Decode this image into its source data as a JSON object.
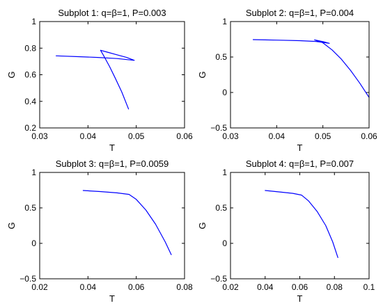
{
  "colors": {
    "line": "#0000ff",
    "axes": "#000000",
    "background": "#ffffff"
  },
  "chart_data": [
    {
      "type": "line",
      "title": "Subplot 1: q=β=1, P=0.003",
      "xlabel": "T",
      "ylabel": "G",
      "xlim": [
        0.03,
        0.06
      ],
      "ylim": [
        0.2,
        1.0
      ],
      "xticks": [
        "0.03",
        "0.04",
        "0.05",
        "0.06"
      ],
      "yticks": [
        "0.2",
        "0.4",
        "0.6",
        "0.8",
        "1"
      ],
      "grid": false,
      "series": [
        {
          "x": [
            0.0334,
            0.038,
            0.042,
            0.046,
            0.0496,
            0.048,
            0.046,
            0.044,
            0.0426,
            0.0433,
            0.0445,
            0.0457,
            0.047,
            0.0484
          ],
          "y": [
            0.742,
            0.736,
            0.73,
            0.722,
            0.708,
            0.73,
            0.75,
            0.77,
            0.784,
            0.74,
            0.66,
            0.57,
            0.47,
            0.342
          ]
        }
      ]
    },
    {
      "type": "line",
      "title": "Subplot 2: q=β=1, P=0.004",
      "xlabel": "T",
      "ylabel": "G",
      "xlim": [
        0.03,
        0.06
      ],
      "ylim": [
        -0.5,
        1.0
      ],
      "xticks": [
        "0.03",
        "0.04",
        "0.05",
        "0.06"
      ],
      "yticks": [
        "−0.5",
        "0",
        "0.5",
        "1"
      ],
      "grid": false,
      "series": [
        {
          "x": [
            0.0349,
            0.04,
            0.045,
            0.0485,
            0.0514,
            0.05,
            0.0482,
            0.05,
            0.052,
            0.054,
            0.056,
            0.058,
            0.06
          ],
          "y": [
            0.745,
            0.738,
            0.73,
            0.72,
            0.693,
            0.718,
            0.742,
            0.7,
            0.6,
            0.47,
            0.31,
            0.13,
            -0.07
          ]
        }
      ]
    },
    {
      "type": "line",
      "title": "Subplot 3: q=β=1, P=0.0059",
      "xlabel": "T",
      "ylabel": "G",
      "xlim": [
        0.02,
        0.08
      ],
      "ylim": [
        -0.5,
        1.0
      ],
      "xticks": [
        "0.02",
        "0.04",
        "0.06",
        "0.08"
      ],
      "yticks": [
        "−0.5",
        "0",
        "0.5",
        "1"
      ],
      "grid": false,
      "series": [
        {
          "x": [
            0.038,
            0.045,
            0.052,
            0.057,
            0.06,
            0.064,
            0.068,
            0.072,
            0.0745
          ],
          "y": [
            0.745,
            0.73,
            0.712,
            0.69,
            0.62,
            0.47,
            0.27,
            0.02,
            -0.16
          ]
        }
      ]
    },
    {
      "type": "line",
      "title": "Subplot 4: q=β=1, P=0.007",
      "xlabel": "T",
      "ylabel": "G",
      "xlim": [
        0.02,
        0.1
      ],
      "ylim": [
        -0.5,
        1.0
      ],
      "xticks": [
        "0.02",
        "0.04",
        "0.06",
        "0.08",
        "0.1"
      ],
      "yticks": [
        "−0.5",
        "0",
        "0.5",
        "1"
      ],
      "grid": false,
      "series": [
        {
          "x": [
            0.04,
            0.048,
            0.056,
            0.061,
            0.065,
            0.07,
            0.075,
            0.079,
            0.082
          ],
          "y": [
            0.745,
            0.725,
            0.705,
            0.68,
            0.6,
            0.45,
            0.25,
            0.02,
            -0.2
          ]
        }
      ]
    }
  ]
}
